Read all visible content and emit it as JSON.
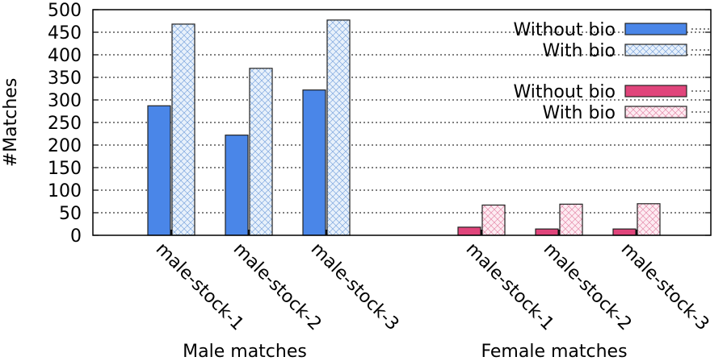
{
  "chart_data": {
    "type": "bar",
    "ylabel": "#Matches",
    "ylim": [
      0,
      500
    ],
    "yticks": [
      "0",
      "50",
      "100",
      "150",
      "200",
      "250",
      "300",
      "350",
      "400",
      "450",
      "500"
    ],
    "grid": true,
    "legend_position": "top-right",
    "groups": [
      {
        "label": "Male matches",
        "categories": [
          "male-stock-1",
          "male-stock-2",
          "male-stock-3"
        ],
        "series": [
          {
            "legend_label": "Without bio",
            "fill": "#4a86e8",
            "pattern": "solid",
            "values": [
              287,
              222,
              322
            ]
          },
          {
            "legend_label": "With bio",
            "fill": "#e6f0fa",
            "pattern": "crosshatch-blue",
            "values": [
              468,
              370,
              477
            ]
          }
        ]
      },
      {
        "label": "Female matches",
        "categories": [
          "male-stock-1",
          "male-stock-2",
          "male-stock-3"
        ],
        "series": [
          {
            "legend_label": "Without bio",
            "fill": "#e0457b",
            "pattern": "solid",
            "values": [
              18,
              14,
              14
            ]
          },
          {
            "legend_label": "With bio",
            "fill": "#fde9f0",
            "pattern": "crosshatch-pink",
            "values": [
              67,
              69,
              70
            ]
          }
        ]
      }
    ]
  }
}
